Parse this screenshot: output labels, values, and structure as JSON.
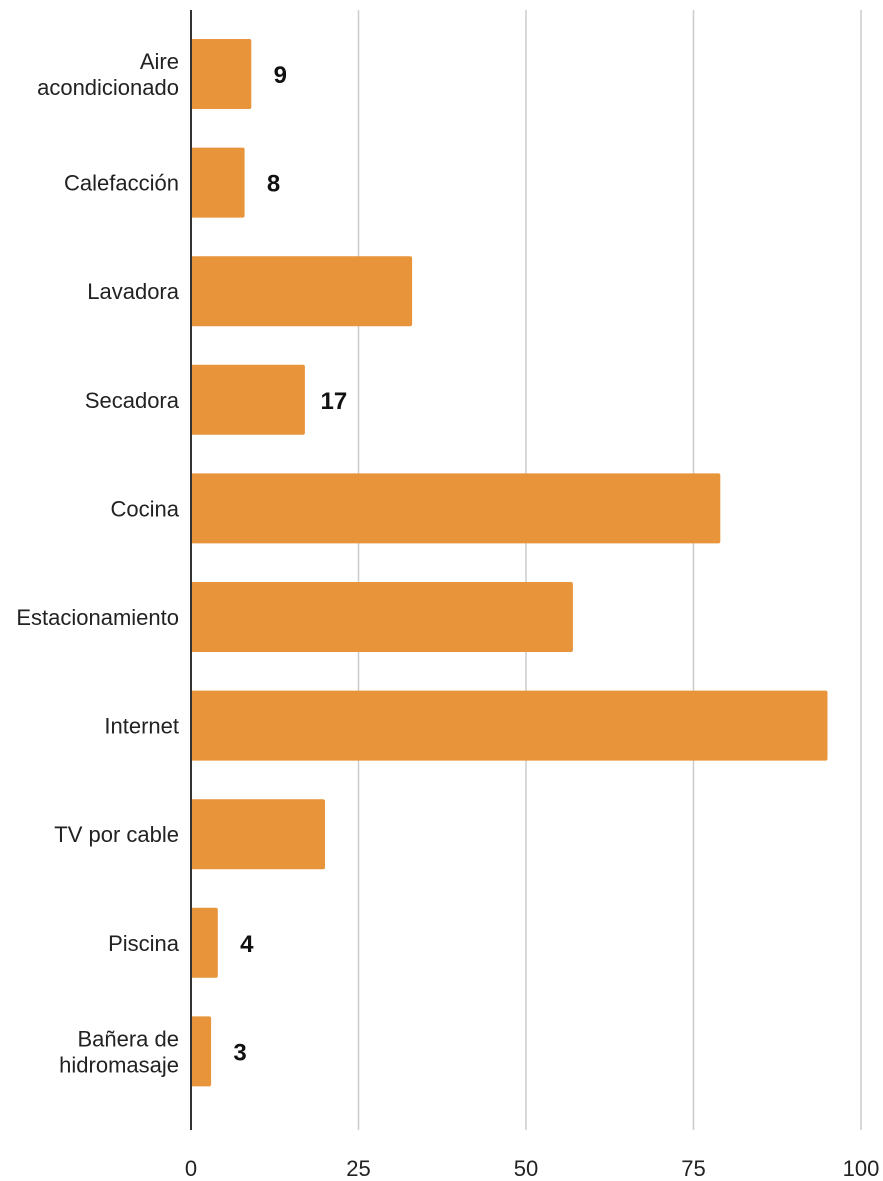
{
  "chart_data": {
    "type": "bar",
    "orientation": "horizontal",
    "title": "",
    "xlabel": "",
    "ylabel": "",
    "categories": [
      [
        "Aire",
        "acondicionado"
      ],
      [
        "Calefacción"
      ],
      [
        "Lavadora"
      ],
      [
        "Secadora"
      ],
      [
        "Cocina"
      ],
      [
        "Estacionamiento"
      ],
      [
        "Internet"
      ],
      [
        "TV por cable"
      ],
      [
        "Piscina"
      ],
      [
        "Bañera de",
        "hidromasaje"
      ]
    ],
    "values": [
      9,
      8,
      33,
      17,
      79,
      57,
      95,
      20,
      4,
      3
    ],
    "data_labels": [
      "9",
      "8",
      "",
      "17",
      "",
      "",
      "",
      "",
      "4",
      "3"
    ],
    "xlim": [
      0,
      100
    ],
    "xticks": [
      0,
      25,
      50,
      75,
      100
    ],
    "grid": "vertical",
    "legend": "none",
    "bar_color": "#E8943A",
    "gridline_color": "#CCCCCC",
    "axis_color": "#333333"
  }
}
